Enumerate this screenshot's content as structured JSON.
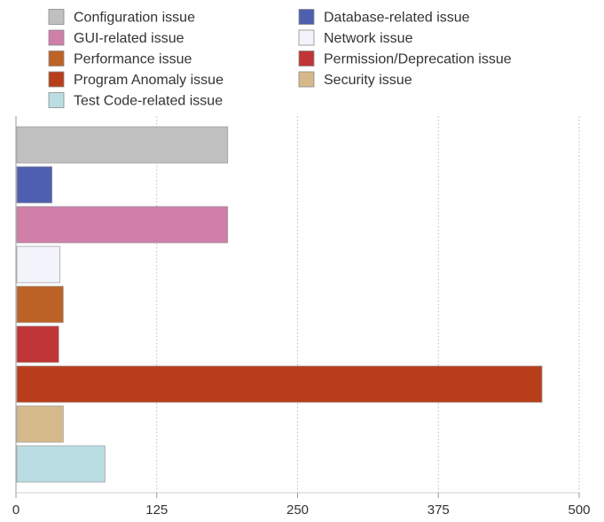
{
  "chart_data": {
    "type": "bar",
    "orientation": "horizontal",
    "categories": [
      "Configuration issue",
      "Database-related issue",
      "GUI-related issue",
      "Network issue",
      "Performance issue",
      "Permission/Deprecation issue",
      "Program Anomaly issue",
      "Security issue",
      "Test Code-related issue"
    ],
    "values": [
      188,
      32,
      188,
      39,
      42,
      38,
      467,
      42,
      79
    ],
    "colors": [
      "#c0c0c0",
      "#4f5fb0",
      "#cf7fa8",
      "#f3f4fb",
      "#bd6327",
      "#c03535",
      "#b83e1b",
      "#d6b98b",
      "#b9dde3"
    ],
    "legend": [
      {
        "label": "Configuration issue",
        "color": "#c0c0c0"
      },
      {
        "label": "Database-related issue",
        "color": "#4f5fb0"
      },
      {
        "label": "GUI-related issue",
        "color": "#cf7fa8"
      },
      {
        "label": "Network issue",
        "color": "#f3f4fb"
      },
      {
        "label": "Performance issue",
        "color": "#bd6327"
      },
      {
        "label": "Permission/Deprecation issue",
        "color": "#c03535"
      },
      {
        "label": "Program Anomaly issue",
        "color": "#b83e1b"
      },
      {
        "label": "Security issue",
        "color": "#d6b98b"
      },
      {
        "label": "Test Code-related issue",
        "color": "#b9dde3"
      }
    ],
    "legend_placement": "top",
    "xlim": [
      0,
      500
    ],
    "xticks": [
      0,
      125,
      250,
      375,
      500
    ],
    "tick_labels": [
      "0",
      "125",
      "250",
      "375",
      "500"
    ],
    "grid": "vertical dotted",
    "title": "",
    "xlabel": "",
    "ylabel": ""
  }
}
